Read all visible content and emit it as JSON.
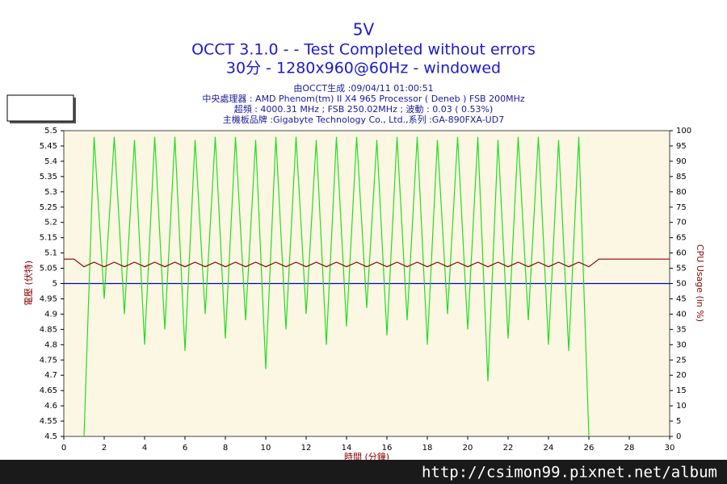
{
  "chart_data": {
    "type": "line",
    "title": "5V",
    "subtitle": [
      "OCCT 3.1.0 -  - Test Completed without errors",
      "30分 - 1280x960@60Hz - windowed"
    ],
    "info": [
      "由OCCT生成 :09/04/11 01:00:51",
      "中央處理器 : AMD Phenom(tm) II X4 965 Processor ( Deneb ) FSB 200MHz",
      "超頻 : 4000.31 MHz ; FSB 250.02MHz ; 波動 : 0.03 ( 0.53%)",
      "主機板品牌 :Gigabyte Technology Co., Ltd.,系列 :GA-890FXA-UD7"
    ],
    "x_label": "時間 (分鐘)",
    "y_label": "電壓 (伏特)",
    "y2_label": "CPU Usage (in %)",
    "x": [
      0,
      0.5,
      1,
      1.5,
      2,
      2.5,
      3,
      3.5,
      4,
      4.5,
      5,
      5.5,
      6,
      6.5,
      7,
      7.5,
      8,
      8.5,
      9,
      9.5,
      10,
      10.5,
      11,
      11.5,
      12,
      12.5,
      13,
      13.5,
      14,
      14.5,
      15,
      15.5,
      16,
      16.5,
      17,
      17.5,
      18,
      18.5,
      19,
      19.5,
      20,
      20.5,
      21,
      21.5,
      22,
      22.5,
      23,
      23.5,
      24,
      24.5,
      25,
      25.5,
      26,
      26.5,
      27,
      27.5,
      28,
      28.5,
      29,
      29.5,
      30
    ],
    "series": [
      {
        "name": "CPU Usage",
        "color": "#22dd22",
        "axis": "y2",
        "values": [
          null,
          null,
          0,
          98,
          45,
          98,
          40,
          97,
          30,
          98,
          35,
          98,
          28,
          97,
          40,
          98,
          32,
          98,
          38,
          97,
          22,
          98,
          35,
          98,
          40,
          97,
          30,
          98,
          36,
          98,
          42,
          97,
          33,
          98,
          38,
          98,
          30,
          97,
          40,
          98,
          35,
          98,
          18,
          97,
          32,
          98,
          38,
          98,
          30,
          97,
          28,
          98,
          0,
          null,
          null,
          null,
          null,
          null,
          null,
          null,
          null
        ]
      },
      {
        "name": "5V",
        "color": "#8b0000",
        "values": [
          5.08,
          5.08,
          5.055,
          5.07,
          5.055,
          5.07,
          5.055,
          5.07,
          5.055,
          5.07,
          5.055,
          5.07,
          5.055,
          5.07,
          5.055,
          5.07,
          5.055,
          5.07,
          5.055,
          5.07,
          5.055,
          5.07,
          5.055,
          5.07,
          5.055,
          5.07,
          5.055,
          5.07,
          5.055,
          5.07,
          5.055,
          5.07,
          5.055,
          5.07,
          5.055,
          5.07,
          5.055,
          5.07,
          5.055,
          5.07,
          5.055,
          5.07,
          5.055,
          5.07,
          5.055,
          5.07,
          5.055,
          5.07,
          5.055,
          5.07,
          5.055,
          5.07,
          5.055,
          5.08,
          5.08,
          5.08,
          5.08,
          5.08,
          5.08,
          5.08,
          5.08
        ]
      }
    ],
    "reference_line": {
      "value": 5,
      "color": "#0000cc"
    },
    "xlim": [
      0,
      30
    ],
    "xticks": [
      0,
      2,
      4,
      6,
      8,
      10,
      12,
      14,
      16,
      18,
      20,
      22,
      24,
      26,
      28,
      30
    ],
    "ylim": [
      4.5,
      5.5
    ],
    "yticks": [
      4.5,
      4.55,
      4.6,
      4.65,
      4.7,
      4.75,
      4.8,
      4.85,
      4.9,
      4.95,
      5,
      5.05,
      5.1,
      5.15,
      5.2,
      5.25,
      5.3,
      5.35,
      5.4,
      5.45,
      5.5
    ],
    "y2lim": [
      0,
      100
    ],
    "y2ticks": [
      0,
      5,
      10,
      15,
      20,
      25,
      30,
      35,
      40,
      45,
      50,
      55,
      60,
      65,
      70,
      75,
      80,
      85,
      90,
      95,
      100
    ],
    "legend": "top-left"
  },
  "watermark": "http://csimon99.pixnet.net/album"
}
